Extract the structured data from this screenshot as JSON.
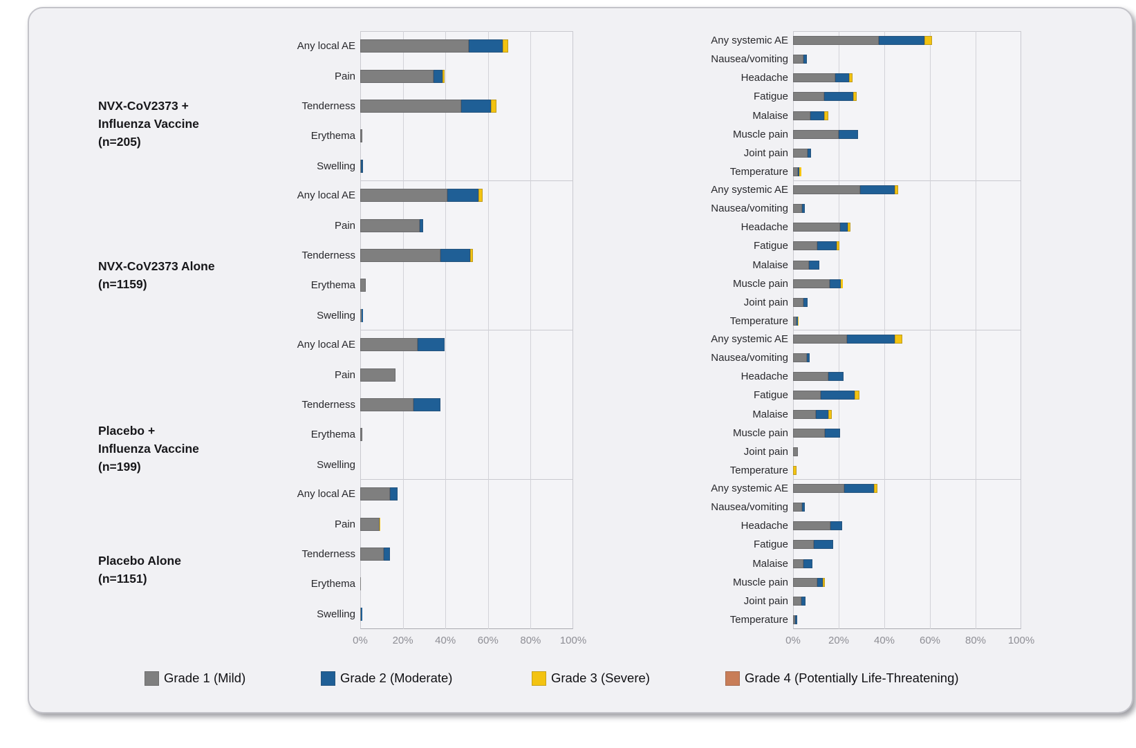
{
  "legend": {
    "items": [
      {
        "label": "Grade 1 (Mild)",
        "color": "#7f7f7f"
      },
      {
        "label": "Grade 2 (Moderate)",
        "color": "#1f5f96"
      },
      {
        "label": "Grade 3 (Severe)",
        "color": "#f3c311"
      },
      {
        "label": "Grade 4 (Potentially Life-Threatening)",
        "color": "#c87d58"
      }
    ]
  },
  "chart_data": {
    "type": "bar",
    "orientation": "horizontal",
    "stacked": true,
    "unit": "percent",
    "xlim": [
      0,
      100
    ],
    "x_ticks": [
      "0%",
      "20%",
      "40%",
      "60%",
      "80%",
      "100%"
    ],
    "grid": "vertical, every 20%",
    "legend_position": "bottom",
    "series": [
      {
        "name": "Grade 1 (Mild)",
        "color": "#7f7f7f"
      },
      {
        "name": "Grade 2 (Moderate)",
        "color": "#1f5f96"
      },
      {
        "name": "Grade 3 (Severe)",
        "color": "#f3c311"
      },
      {
        "name": "Grade 4 (Potentially Life-Threatening)",
        "color": "#c87d58"
      }
    ],
    "panels": [
      {
        "key": "local",
        "categories": [
          "Any local AE",
          "Pain",
          "Tenderness",
          "Erythema",
          "Swelling"
        ]
      },
      {
        "key": "systemic",
        "categories": [
          "Any systemic AE",
          "Nausea/vomiting",
          "Headache",
          "Fatigue",
          "Malaise",
          "Muscle pain",
          "Joint pain",
          "Temperature"
        ]
      }
    ],
    "groups": [
      {
        "label_lines": [
          "NVX-CoV2373 +",
          "Influenza Vaccine",
          "(n=205)"
        ],
        "n": 205,
        "local": [
          [
            51,
            16,
            2.5,
            0
          ],
          [
            34.5,
            4,
            1,
            0
          ],
          [
            47.5,
            14,
            2.5,
            0
          ],
          [
            1,
            0,
            0,
            0
          ],
          [
            0.3,
            1,
            0,
            0
          ]
        ],
        "systemic": [
          [
            37.5,
            20,
            3.5,
            0
          ],
          [
            4.5,
            1.5,
            0,
            0
          ],
          [
            18.5,
            6,
            1.5,
            0
          ],
          [
            13.5,
            13,
            1.5,
            0
          ],
          [
            7.5,
            6,
            2,
            0
          ],
          [
            20,
            8.5,
            0,
            0
          ],
          [
            6.5,
            1.5,
            0,
            0
          ],
          [
            2,
            0.8,
            0.7,
            0
          ]
        ]
      },
      {
        "label_lines": [
          "NVX-CoV2373 Alone",
          "(n=1159)"
        ],
        "n": 1159,
        "local": [
          [
            41,
            14.5,
            2,
            0
          ],
          [
            28,
            1.5,
            0,
            0
          ],
          [
            37.5,
            14,
            1.5,
            0
          ],
          [
            2.5,
            0,
            0,
            0
          ],
          [
            0.8,
            0.5,
            0,
            0
          ]
        ],
        "systemic": [
          [
            29.5,
            15,
            1.5,
            0
          ],
          [
            4,
            1.3,
            0,
            0
          ],
          [
            20.5,
            3.5,
            1.2,
            0
          ],
          [
            10.5,
            8.5,
            1.2,
            0
          ],
          [
            7,
            4.5,
            0,
            0
          ],
          [
            16,
            5,
            0.7,
            0
          ],
          [
            4.5,
            2,
            0,
            0
          ],
          [
            1.5,
            0.5,
            0.5,
            0
          ]
        ]
      },
      {
        "label_lines": [
          "Placebo +",
          "Influenza Vaccine",
          "(n=199)"
        ],
        "n": 199,
        "local": [
          [
            27,
            12.5,
            0,
            0
          ],
          [
            16.5,
            0,
            0,
            0
          ],
          [
            25,
            12.5,
            0,
            0
          ],
          [
            1,
            0,
            0,
            0
          ],
          [
            0,
            0,
            0,
            0
          ]
        ],
        "systemic": [
          [
            23.5,
            21,
            3.5,
            0
          ],
          [
            6,
            1.3,
            0,
            0
          ],
          [
            15.5,
            6.5,
            0,
            0
          ],
          [
            12,
            15,
            2,
            0
          ],
          [
            10,
            5.5,
            1.5,
            0
          ],
          [
            14,
            6.5,
            0,
            0
          ],
          [
            2,
            0,
            0,
            0
          ],
          [
            0,
            0,
            1.5,
            0
          ]
        ]
      },
      {
        "label_lines": [
          "Placebo Alone",
          "(n=1151)"
        ],
        "n": 1151,
        "local": [
          [
            14,
            3.5,
            0,
            0
          ],
          [
            9,
            0,
            0.5,
            0
          ],
          [
            11,
            3,
            0,
            0
          ],
          [
            0.4,
            0,
            0,
            0
          ],
          [
            0.2,
            0.8,
            0,
            0
          ]
        ],
        "systemic": [
          [
            22.5,
            13,
            1.5,
            0
          ],
          [
            3.8,
            1.5,
            0,
            0
          ],
          [
            16.5,
            5,
            0,
            0
          ],
          [
            9,
            8.5,
            0,
            0
          ],
          [
            4.5,
            4,
            0,
            0
          ],
          [
            10.5,
            2.5,
            0.8,
            0
          ],
          [
            3.5,
            2,
            0,
            0
          ],
          [
            1,
            0.8,
            0,
            0
          ]
        ]
      }
    ]
  }
}
